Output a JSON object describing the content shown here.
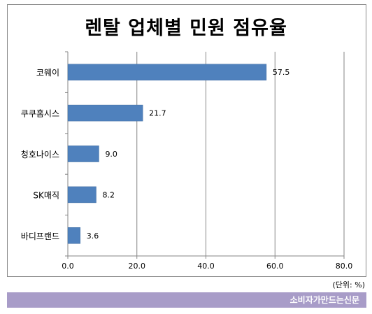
{
  "chart_data": {
    "type": "bar",
    "orientation": "horizontal",
    "title": "렌탈 업체별 민원 점유율",
    "categories": [
      "코웨이",
      "쿠쿠홈시스",
      "청호나이스",
      "SK매직",
      "바디프랜드"
    ],
    "values": [
      57.5,
      21.7,
      9.0,
      8.2,
      3.6
    ],
    "value_labels": [
      "57.5",
      "21.7",
      "9.0",
      "8.2",
      "3.6"
    ],
    "xlim": [
      0,
      80
    ],
    "x_ticks": [
      "0.0",
      "20.0",
      "40.0",
      "60.0",
      "80.0"
    ],
    "grid": true,
    "xlabel": "",
    "ylabel": ""
  },
  "unit_note": "(단위: %)",
  "source_label": "소비자가만드는신문",
  "colors": {
    "bar": "#4f81bd",
    "grid": "#868686",
    "footer": "#a89cc8"
  }
}
